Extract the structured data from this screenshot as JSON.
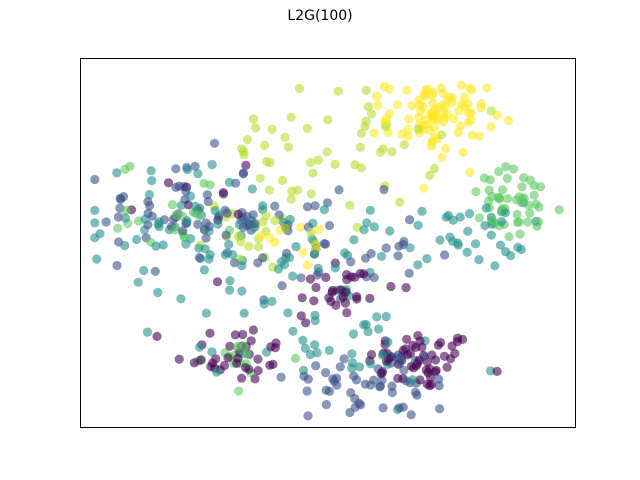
{
  "chart_data": {
    "type": "scatter",
    "title": "L2G(100)",
    "xlabel": "",
    "ylabel": "",
    "xlim": [
      0,
      100
    ],
    "ylim": [
      0,
      100
    ],
    "axis_ticks": false,
    "grid": false,
    "legend": "none",
    "colormap": "viridis",
    "marker_alpha": 0.6,
    "clusters": [
      {
        "class": 0,
        "color": "#440154",
        "n": 55,
        "cx": 69,
        "cy": 18,
        "sx": 5.5,
        "sy": 4.0
      },
      {
        "class": 0,
        "color": "#440154",
        "n": 35,
        "cx": 31,
        "cy": 20,
        "sx": 6.0,
        "sy": 4.0
      },
      {
        "class": 0,
        "color": "#440154",
        "n": 30,
        "cx": 52,
        "cy": 37,
        "sx": 6.0,
        "sy": 5.0
      },
      {
        "class": 0,
        "color": "#440154",
        "n": 8,
        "cx": 22,
        "cy": 60,
        "sx": 8.0,
        "sy": 8.0
      },
      {
        "class": 1,
        "color": "#3b528b",
        "n": 55,
        "cx": 60,
        "cy": 12,
        "sx": 9.0,
        "sy": 5.0
      },
      {
        "class": 1,
        "color": "#3b528b",
        "n": 40,
        "cx": 20,
        "cy": 60,
        "sx": 8.0,
        "sy": 7.0
      },
      {
        "class": 1,
        "color": "#3b528b",
        "n": 40,
        "cx": 45,
        "cy": 48,
        "sx": 12.0,
        "sy": 7.0
      },
      {
        "class": 1,
        "color": "#3b528b",
        "n": 20,
        "cx": 35,
        "cy": 55,
        "sx": 8.0,
        "sy": 5.0
      },
      {
        "class": 2,
        "color": "#21918c",
        "n": 60,
        "cx": 24,
        "cy": 55,
        "sx": 11.0,
        "sy": 8.0
      },
      {
        "class": 2,
        "color": "#21918c",
        "n": 35,
        "cx": 78,
        "cy": 52,
        "sx": 6.0,
        "sy": 4.5
      },
      {
        "class": 2,
        "color": "#21918c",
        "n": 30,
        "cx": 55,
        "cy": 22,
        "sx": 10.0,
        "sy": 6.0
      },
      {
        "class": 2,
        "color": "#21918c",
        "n": 25,
        "cx": 47,
        "cy": 48,
        "sx": 10.0,
        "sy": 6.0
      },
      {
        "class": 2,
        "color": "#21918c",
        "n": 20,
        "cx": 37,
        "cy": 30,
        "sx": 10.0,
        "sy": 6.0
      },
      {
        "class": 3,
        "color": "#5ec962",
        "n": 50,
        "cx": 88,
        "cy": 60,
        "sx": 5.0,
        "sy": 5.0
      },
      {
        "class": 3,
        "color": "#5ec962",
        "n": 15,
        "cx": 32,
        "cy": 18,
        "sx": 6.0,
        "sy": 3.0
      },
      {
        "class": 3,
        "color": "#5ec962",
        "n": 20,
        "cx": 20,
        "cy": 60,
        "sx": 6.0,
        "sy": 6.0
      },
      {
        "class": 4,
        "color": "#b5de2b",
        "n": 50,
        "cx": 50,
        "cy": 75,
        "sx": 11.0,
        "sy": 8.0
      },
      {
        "class": 4,
        "color": "#b5de2b",
        "n": 25,
        "cx": 38,
        "cy": 55,
        "sx": 6.0,
        "sy": 6.0
      },
      {
        "class": 5,
        "color": "#fde725",
        "n": 90,
        "cx": 72,
        "cy": 84,
        "sx": 5.0,
        "sy": 5.0
      },
      {
        "class": 5,
        "color": "#fde725",
        "n": 10,
        "cx": 43,
        "cy": 50,
        "sx": 6.0,
        "sy": 4.0
      }
    ]
  }
}
